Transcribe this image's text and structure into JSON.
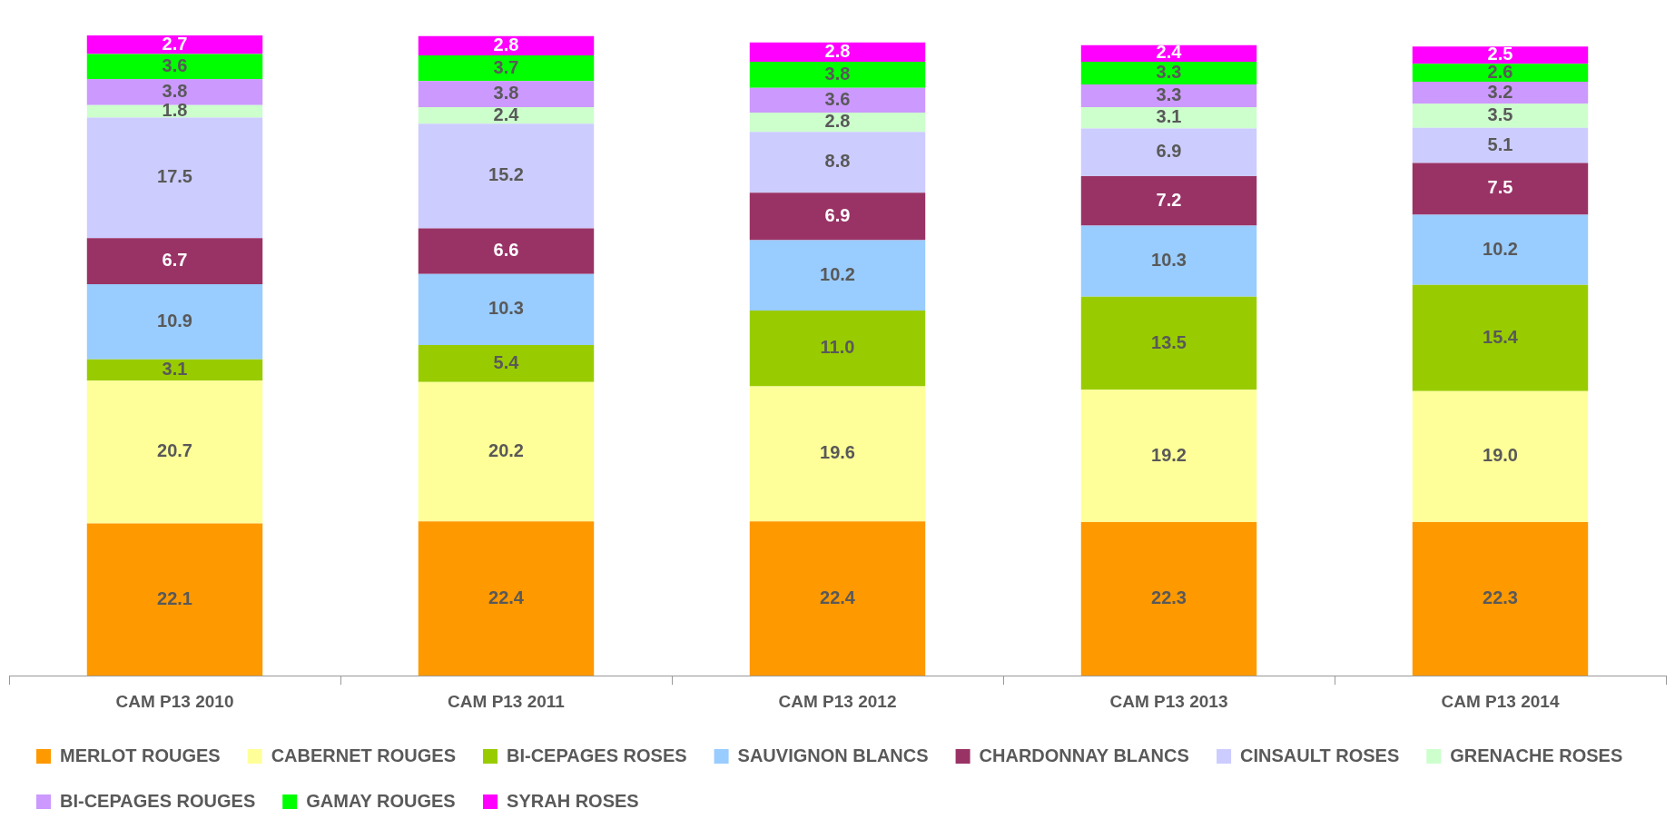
{
  "chart_data": {
    "type": "bar",
    "stacked": true,
    "legend": "bottom",
    "grid": false,
    "categories": [
      "CAM P13 2010",
      "CAM P13 2011",
      "CAM P13 2012",
      "CAM P13 2013",
      "CAM P13 2014"
    ],
    "series": [
      {
        "name": "MERLOT ROUGES",
        "color": "#ff9900",
        "values": [
          22.1,
          22.4,
          22.4,
          22.3,
          22.3
        ],
        "value_labels": [
          "22.1",
          "22.4",
          "22.4",
          "22.3",
          "22.3"
        ]
      },
      {
        "name": "CABERNET ROUGES",
        "color": "#ffff99",
        "values": [
          20.7,
          20.2,
          19.6,
          19.2,
          19
        ],
        "value_labels": [
          "20.7",
          "20.2",
          "19.6",
          "19.2",
          "19.0"
        ]
      },
      {
        "name": "BI-CEPAGES ROSES",
        "color": "#99cc00",
        "values": [
          3.1,
          5.4,
          11,
          13.5,
          15.4
        ],
        "value_labels": [
          "3.1",
          "5.4",
          "11.0",
          "13.5",
          "15.4"
        ]
      },
      {
        "name": "SAUVIGNON BLANCS",
        "color": "#99ccff",
        "values": [
          10.9,
          10.3,
          10.2,
          10.3,
          10.2
        ],
        "value_labels": [
          "10.9",
          "10.3",
          "10.2",
          "10.3",
          "10.2"
        ]
      },
      {
        "name": "CHARDONNAY BLANCS",
        "color": "#993366",
        "values": [
          6.7,
          6.6,
          6.9,
          7.2,
          7.5
        ],
        "value_labels": [
          "6.7",
          "6.6",
          "6.9",
          "7.2",
          "7.5"
        ]
      },
      {
        "name": "CINSAULT ROSES",
        "color": "#ccccff",
        "values": [
          17.5,
          15.2,
          8.8,
          6.9,
          5.1
        ],
        "value_labels": [
          "17.5",
          "15.2",
          "8.8",
          "6.9",
          "5.1"
        ]
      },
      {
        "name": "GRENACHE ROSES",
        "color": "#ccffcc",
        "values": [
          1.8,
          2.4,
          2.8,
          3.1,
          3.5
        ],
        "value_labels": [
          "1.8",
          "2.4",
          "2.8",
          "3.1",
          "3.5"
        ]
      },
      {
        "name": "BI-CEPAGES ROUGES",
        "color": "#cc99ff",
        "values": [
          3.8,
          3.8,
          3.6,
          3.3,
          3.2
        ],
        "value_labels": [
          "3.8",
          "3.8",
          "3.6",
          "3.3",
          "3.2"
        ]
      },
      {
        "name": "GAMAY ROUGES",
        "color": "#00ff00",
        "values": [
          3.6,
          3.7,
          3.8,
          3.3,
          2.6
        ],
        "value_labels": [
          "3.6",
          "3.7",
          "3.8",
          "3.3",
          "2.6"
        ]
      },
      {
        "name": "SYRAH ROSES",
        "color": "#ff00ff",
        "values": [
          2.7,
          2.8,
          2.8,
          2.4,
          2.5
        ],
        "value_labels": [
          "2.7",
          "2.8",
          "2.8",
          "2.4",
          "2.5"
        ]
      }
    ]
  }
}
